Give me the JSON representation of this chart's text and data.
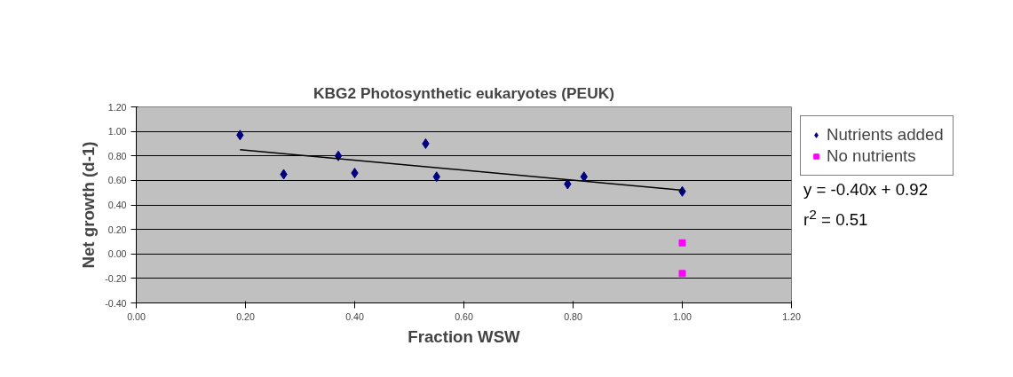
{
  "chart_data": {
    "type": "scatter",
    "title": "KBG2 Photosynthetic eukaryotes (PEUK)",
    "xlabel": "Fraction WSW",
    "ylabel": "Net growth (d-1)",
    "series": [
      {
        "name": "Nutrients added",
        "color": "#000080",
        "marker": "diamond",
        "x": [
          0.19,
          0.27,
          0.37,
          0.4,
          0.53,
          0.55,
          0.79,
          0.82,
          1.0
        ],
        "values": [
          0.97,
          0.65,
          0.8,
          0.66,
          0.9,
          0.63,
          0.57,
          0.63,
          0.51
        ]
      },
      {
        "name": "No nutrients",
        "color": "#ff00ff",
        "marker": "square",
        "x": [
          1.0,
          1.0
        ],
        "values": [
          0.09,
          -0.16
        ]
      },
      {
        "type": "line",
        "color": "#000000",
        "marker": "none",
        "x": [
          0.19,
          1.0
        ],
        "values": [
          0.85,
          0.52
        ]
      }
    ],
    "annotations": [
      "y = -0.40x + 0.92",
      "r$^{2}$ = 0.51"
    ],
    "xlim": [
      0,
      1.2
    ],
    "ylim": [
      -0.4,
      1.2
    ],
    "xticks": [
      {
        "value": 0,
        "label": "0.00"
      },
      {
        "value": 0.2,
        "label": "0.20"
      },
      {
        "value": 0.4,
        "label": "0.40"
      },
      {
        "value": 0.6,
        "label": "0.60"
      },
      {
        "value": 0.8,
        "label": "0.80"
      },
      {
        "value": 1.0,
        "label": "1.00"
      },
      {
        "value": 1.2,
        "label": "1.20"
      }
    ],
    "yticks": [
      {
        "value": -0.4,
        "label": "-0.40"
      },
      {
        "value": -0.2,
        "label": "-0.20"
      },
      {
        "value": 0,
        "label": "0.00"
      },
      {
        "value": 0.2,
        "label": "0.20"
      },
      {
        "value": 0.4,
        "label": "0.40"
      },
      {
        "value": 0.6,
        "label": "0.60"
      },
      {
        "value": 0.8,
        "label": "0.80"
      },
      {
        "value": 1.0,
        "label": "1.00"
      },
      {
        "value": 1.2,
        "label": "1.20"
      }
    ],
    "grid": "y",
    "legend": "right"
  }
}
